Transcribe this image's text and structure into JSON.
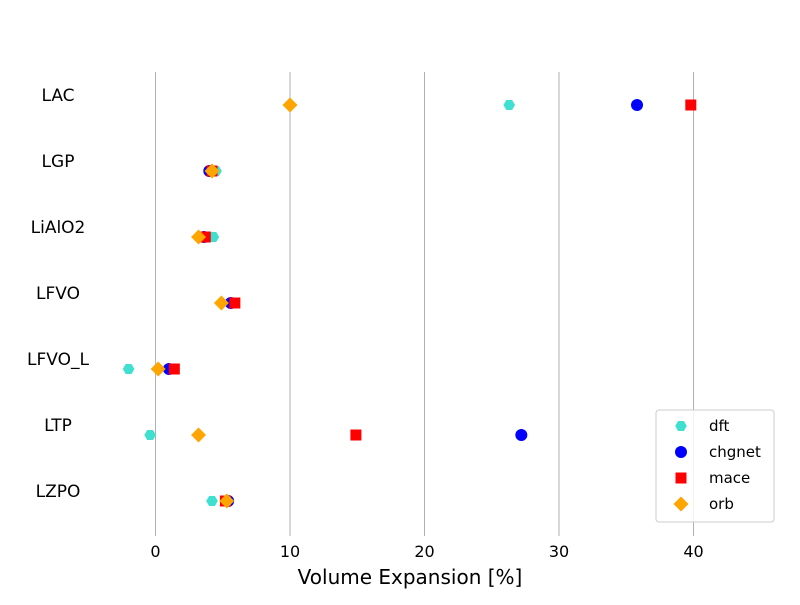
{
  "chart_data": {
    "type": "scatter",
    "xlabel": "Volume Expansion [%]",
    "ylabel": "",
    "title": "",
    "xlim": [
      -5,
      46
    ],
    "xticks": [
      0,
      10,
      20,
      30,
      40
    ],
    "xtick_labels": [
      "0",
      "10",
      "20",
      "30",
      "40"
    ],
    "categories": [
      "LAC",
      "LGP",
      "LiAlO2",
      "LFVO",
      "LFVO_L",
      "LTP",
      "LZPO"
    ],
    "grid": "vertical",
    "legend_position": "lower-right",
    "series": [
      {
        "name": "dft",
        "marker": "hexagon",
        "color": "#40E0D0",
        "values": [
          26.3,
          4.5,
          4.3,
          5.7,
          -2.0,
          -0.4,
          4.2
        ]
      },
      {
        "name": "chgnet",
        "marker": "circle",
        "color": "#0000FF",
        "values": [
          35.8,
          4.0,
          3.6,
          5.6,
          1.0,
          27.2,
          5.4
        ]
      },
      {
        "name": "mace",
        "marker": "square",
        "color": "#FF0000",
        "values": [
          39.8,
          4.2,
          3.7,
          5.9,
          1.4,
          14.9,
          5.2
        ]
      },
      {
        "name": "orb",
        "marker": "diamond",
        "color": "#FFA500",
        "values": [
          10.0,
          4.2,
          3.2,
          4.9,
          0.2,
          3.2,
          5.3
        ]
      }
    ]
  }
}
